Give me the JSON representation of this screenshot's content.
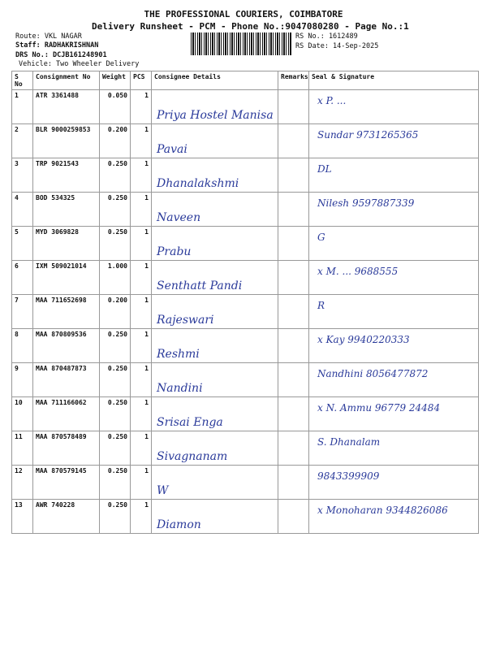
{
  "header": {
    "title": "THE PROFESSIONAL COURIERS, COIMBATORE",
    "subtitle": "Delivery Runsheet - PCM - Phone No.:9047080280 - Page No.:1",
    "route": "Route: VKL NAGAR",
    "staff": "Staff: RADHAKRISHNAN",
    "drs": "DRS No.: DCJB161248901",
    "vehicle": "Vehicle: Two Wheeler Delivery",
    "rs_no": "RS No.: 1612489",
    "rs_date": "RS Date: 14-Sep-2025"
  },
  "columns": [
    "S No",
    "Consignment No",
    "Weight",
    "PCS",
    "Consignee Details",
    "Remarks",
    "Seal & Signature"
  ],
  "rows": [
    {
      "sno": "1",
      "cn": "ATR 3361488",
      "wt": "0.050",
      "pcs": "1",
      "consignee": "Priya Hostel Manisa",
      "sig": "x P. ..."
    },
    {
      "sno": "2",
      "cn": "BLR 9000259853",
      "wt": "0.200",
      "pcs": "1",
      "consignee": "Pavai",
      "sig": "Sundar 9731265365"
    },
    {
      "sno": "3",
      "cn": "TRP 9021543",
      "wt": "0.250",
      "pcs": "1",
      "consignee": "Dhanalakshmi",
      "sig": "DL"
    },
    {
      "sno": "4",
      "cn": "BOD 534325",
      "wt": "0.250",
      "pcs": "1",
      "consignee": "Naveen",
      "sig": "Nilesh 9597887339"
    },
    {
      "sno": "5",
      "cn": "MYD 3069828",
      "wt": "0.250",
      "pcs": "1",
      "consignee": "Prabu",
      "sig": "G"
    },
    {
      "sno": "6",
      "cn": "IXM 509021014",
      "wt": "1.000",
      "pcs": "1",
      "consignee": "Senthatt Pandi",
      "sig": "x M. ... 9688555"
    },
    {
      "sno": "7",
      "cn": "MAA 711652698",
      "wt": "0.200",
      "pcs": "1",
      "consignee": "Rajeswari",
      "sig": "R"
    },
    {
      "sno": "8",
      "cn": "MAA 870809536",
      "wt": "0.250",
      "pcs": "1",
      "consignee": "Reshmi",
      "sig": "x Kay 9940220333"
    },
    {
      "sno": "9",
      "cn": "MAA 870487873",
      "wt": "0.250",
      "pcs": "1",
      "consignee": "Nandini",
      "sig": "Nandhini 8056477872"
    },
    {
      "sno": "10",
      "cn": "MAA 711166062",
      "wt": "0.250",
      "pcs": "1",
      "consignee": "Srisai Enga",
      "sig": "x N. Ammu 96779 24484"
    },
    {
      "sno": "11",
      "cn": "MAA 870578489",
      "wt": "0.250",
      "pcs": "1",
      "consignee": "Sivagnanam",
      "sig": "S. Dhanalam"
    },
    {
      "sno": "12",
      "cn": "MAA 870579145",
      "wt": "0.250",
      "pcs": "1",
      "consignee": "W",
      "sig": "9843399909"
    },
    {
      "sno": "13",
      "cn": "AWR 740228",
      "wt": "0.250",
      "pcs": "1",
      "consignee": "Diamon",
      "sig": "x Monoharan 9344826086"
    }
  ],
  "colors": {
    "ink": "#2a3a9a"
  }
}
